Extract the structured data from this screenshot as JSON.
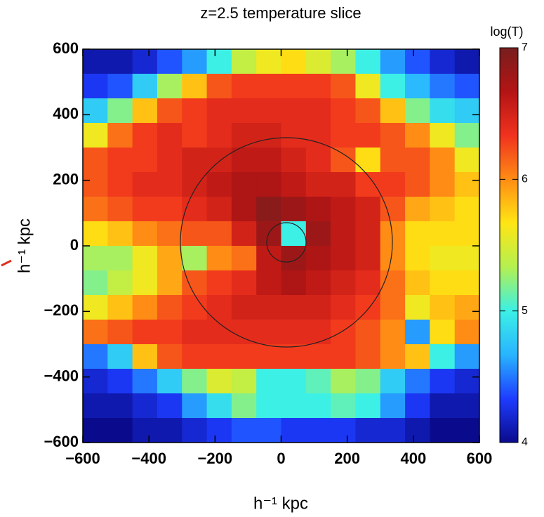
{
  "chart_data": {
    "type": "heatmap",
    "title": "z=2.5 temperature slice",
    "xlabel": "h⁻¹ kpc",
    "ylabel": "h⁻¹ kpc",
    "colorbar_label": "log(T)",
    "xlim": [
      -600,
      600
    ],
    "ylim": [
      -600,
      600
    ],
    "clim": [
      4,
      7
    ],
    "xticks": [
      {
        "value": -600,
        "label": "−600"
      },
      {
        "value": -400,
        "label": "−400"
      },
      {
        "value": -200,
        "label": "−200"
      },
      0,
      200,
      400,
      600
    ],
    "yticks": [
      {
        "value": -600,
        "label": "−600"
      },
      {
        "value": -400,
        "label": "−400"
      },
      {
        "value": -200,
        "label": "−200"
      },
      0,
      200,
      400,
      600
    ],
    "cticks": [
      4,
      5,
      6,
      7
    ],
    "colormap": [
      "#0a0a8c",
      "#1e3cff",
      "#28b4ff",
      "#3cf0e6",
      "#b4f050",
      "#ffe614",
      "#ff8c14",
      "#f0321e",
      "#b41414",
      "#781e1e"
    ],
    "values": [
      [
        4.1,
        4.1,
        4.2,
        4.4,
        4.6,
        5.0,
        5.4,
        5.6,
        5.7,
        5.5,
        5.3,
        5.0,
        4.6,
        4.4,
        4.2,
        4.1
      ],
      [
        4.3,
        4.4,
        4.8,
        5.3,
        5.8,
        6.2,
        6.3,
        6.3,
        6.3,
        6.3,
        6.2,
        5.6,
        5.0,
        4.7,
        4.5,
        4.4
      ],
      [
        4.8,
        5.2,
        5.8,
        6.2,
        6.3,
        6.4,
        6.4,
        6.4,
        6.4,
        6.4,
        6.3,
        6.2,
        5.8,
        5.2,
        4.9,
        4.8
      ],
      [
        5.6,
        6.1,
        6.3,
        6.4,
        6.3,
        6.4,
        6.5,
        6.5,
        6.4,
        6.4,
        6.3,
        6.3,
        6.2,
        6.0,
        5.6,
        5.2
      ],
      [
        6.2,
        6.3,
        6.3,
        6.4,
        6.5,
        6.5,
        6.6,
        6.6,
        6.5,
        6.4,
        6.2,
        5.7,
        6.2,
        6.2,
        6.0,
        5.6
      ],
      [
        6.2,
        6.3,
        6.4,
        6.4,
        6.5,
        6.6,
        6.7,
        6.7,
        6.6,
        6.5,
        6.5,
        6.3,
        6.3,
        6.2,
        6.0,
        5.8
      ],
      [
        6.1,
        6.2,
        6.3,
        6.3,
        6.4,
        6.5,
        6.7,
        6.9,
        6.8,
        6.7,
        6.6,
        6.5,
        6.2,
        5.9,
        5.8,
        5.7
      ],
      [
        5.7,
        5.8,
        6.0,
        6.1,
        6.2,
        6.2,
        6.5,
        6.8,
        5.0,
        6.8,
        6.6,
        6.5,
        6.0,
        5.7,
        5.7,
        5.7
      ],
      [
        5.3,
        5.3,
        5.6,
        5.9,
        5.3,
        6.0,
        6.1,
        6.6,
        6.8,
        6.7,
        6.6,
        6.5,
        6.0,
        5.7,
        5.6,
        5.6
      ],
      [
        5.2,
        5.4,
        5.6,
        5.9,
        6.2,
        6.3,
        6.4,
        6.6,
        6.7,
        6.6,
        6.5,
        6.4,
        6.1,
        5.8,
        5.7,
        5.7
      ],
      [
        5.6,
        5.8,
        6.0,
        6.2,
        6.3,
        6.4,
        6.5,
        6.5,
        6.5,
        6.5,
        6.4,
        6.3,
        6.1,
        5.6,
        5.8,
        5.9
      ],
      [
        6.1,
        6.2,
        6.3,
        6.3,
        6.4,
        6.4,
        6.4,
        6.4,
        6.4,
        6.4,
        6.3,
        6.2,
        6.0,
        4.6,
        5.7,
        6.0
      ],
      [
        4.5,
        4.8,
        5.8,
        6.2,
        6.3,
        6.3,
        6.3,
        6.3,
        6.3,
        6.3,
        6.3,
        6.2,
        6.0,
        5.8,
        5.0,
        4.6
      ],
      [
        4.2,
        4.3,
        4.5,
        4.8,
        5.2,
        5.5,
        5.4,
        5.0,
        5.0,
        5.1,
        5.3,
        5.2,
        4.8,
        4.5,
        4.3,
        4.2
      ],
      [
        4.1,
        4.1,
        4.2,
        4.3,
        4.6,
        4.9,
        5.2,
        5.0,
        5.0,
        5.0,
        5.1,
        5.0,
        4.6,
        4.3,
        4.1,
        4.1
      ],
      [
        4.0,
        4.0,
        4.1,
        4.1,
        4.2,
        4.3,
        4.4,
        4.4,
        4.3,
        4.3,
        4.3,
        4.2,
        4.2,
        4.1,
        4.0,
        4.0
      ]
    ]
  }
}
